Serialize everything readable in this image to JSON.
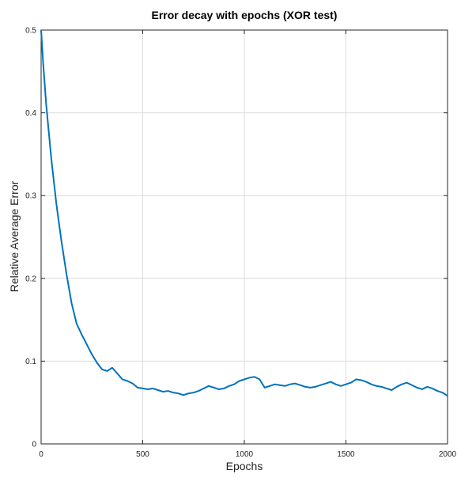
{
  "chart_data": {
    "type": "line",
    "title": "Error decay with epochs (XOR test)",
    "xlabel": "Epochs",
    "ylabel": "Relative Average Error",
    "xlim": [
      0,
      2000
    ],
    "ylim": [
      0,
      0.5
    ],
    "x_ticks": [
      "0",
      "500",
      "1000",
      "1500",
      "2000"
    ],
    "y_ticks": [
      "0",
      "0.1",
      "0.2",
      "0.3",
      "0.4",
      "0.5"
    ],
    "grid": true,
    "legend": "none",
    "series": [
      {
        "color": "#0072bd",
        "x": [
          0,
          10,
          25,
          50,
          75,
          100,
          125,
          150,
          175,
          200,
          225,
          250,
          275,
          300,
          325,
          350,
          375,
          400,
          425,
          450,
          475,
          500,
          525,
          550,
          575,
          600,
          625,
          650,
          675,
          700,
          725,
          750,
          775,
          800,
          825,
          850,
          875,
          900,
          925,
          950,
          975,
          1000,
          1025,
          1050,
          1075,
          1100,
          1125,
          1150,
          1175,
          1200,
          1225,
          1250,
          1275,
          1300,
          1325,
          1350,
          1375,
          1400,
          1425,
          1450,
          1475,
          1500,
          1525,
          1550,
          1575,
          1600,
          1625,
          1650,
          1675,
          1700,
          1725,
          1750,
          1775,
          1800,
          1825,
          1850,
          1875,
          1900,
          1925,
          1950,
          1975,
          2000
        ],
        "y": [
          0.5,
          0.46,
          0.41,
          0.345,
          0.29,
          0.245,
          0.205,
          0.17,
          0.145,
          0.132,
          0.12,
          0.108,
          0.098,
          0.09,
          0.088,
          0.092,
          0.085,
          0.078,
          0.076,
          0.073,
          0.068,
          0.067,
          0.066,
          0.067,
          0.065,
          0.063,
          0.064,
          0.062,
          0.061,
          0.059,
          0.061,
          0.062,
          0.064,
          0.067,
          0.07,
          0.068,
          0.066,
          0.067,
          0.07,
          0.072,
          0.076,
          0.078,
          0.08,
          0.081,
          0.078,
          0.068,
          0.07,
          0.072,
          0.071,
          0.07,
          0.072,
          0.073,
          0.071,
          0.069,
          0.068,
          0.069,
          0.071,
          0.073,
          0.075,
          0.072,
          0.07,
          0.072,
          0.074,
          0.078,
          0.077,
          0.075,
          0.072,
          0.07,
          0.069,
          0.067,
          0.065,
          0.069,
          0.072,
          0.074,
          0.071,
          0.068,
          0.066,
          0.069,
          0.067,
          0.064,
          0.062,
          0.058
        ]
      }
    ]
  }
}
